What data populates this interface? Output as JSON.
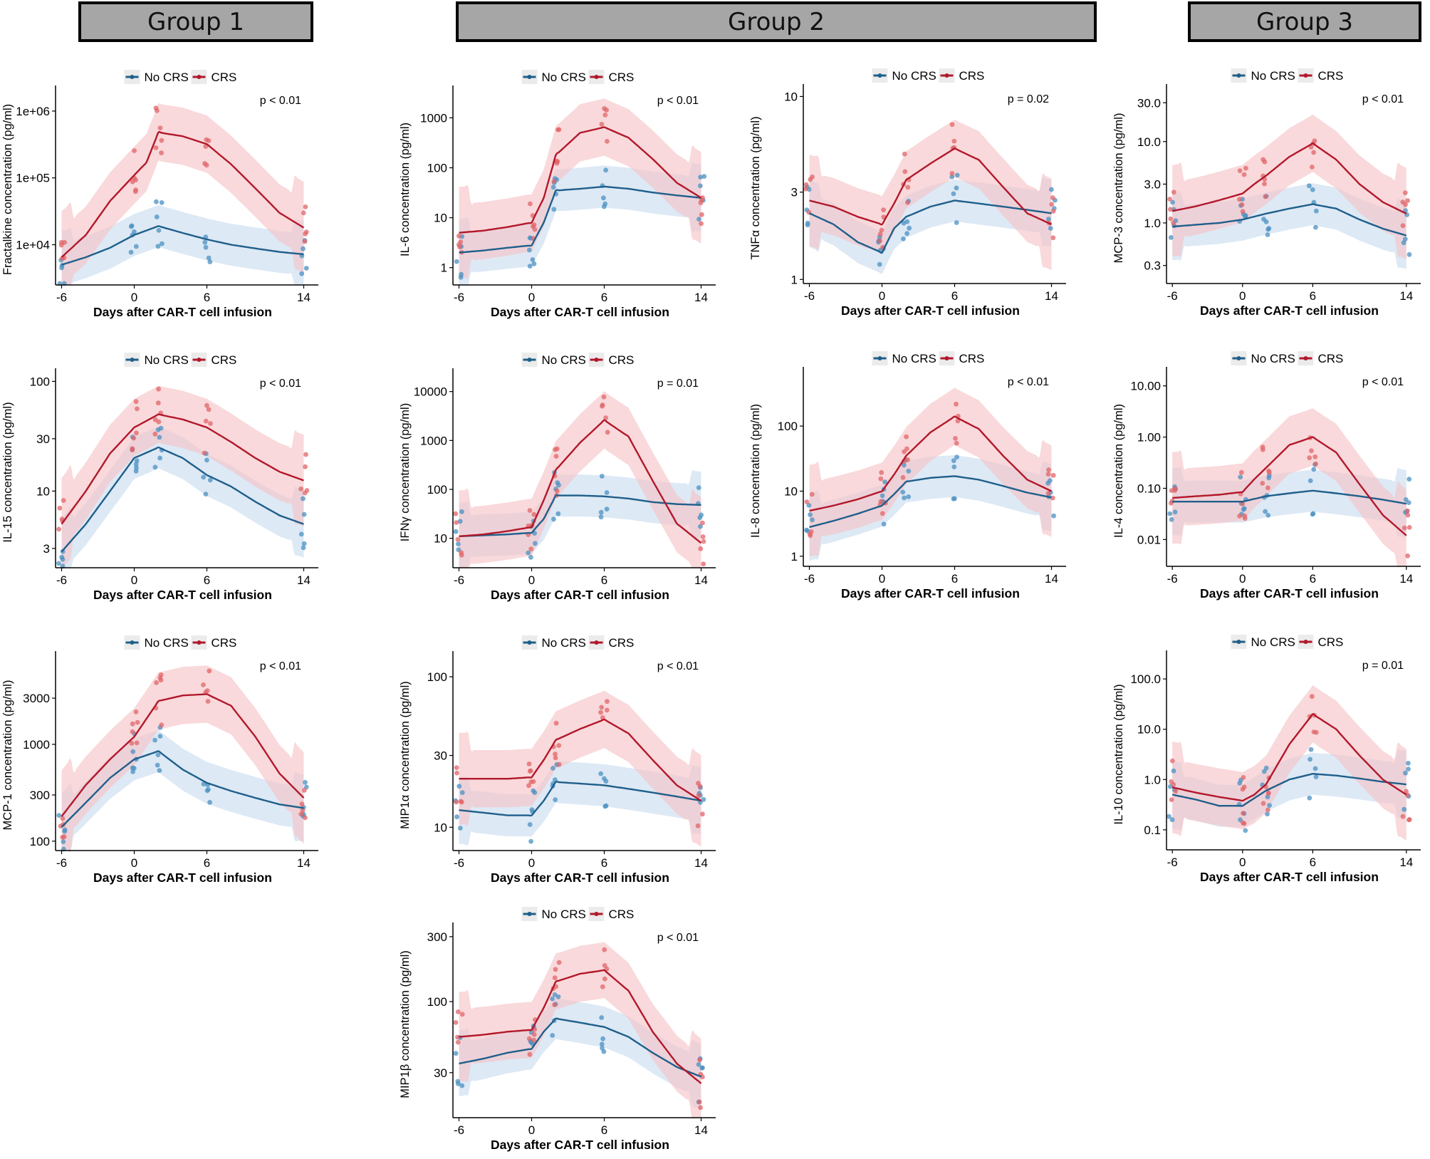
{
  "colors": {
    "no_crs": "#1f5f8b",
    "crs": "#b2182b",
    "no_crs_band": "#c6dbef",
    "crs_band": "#f6c5c8",
    "no_crs_point": "#4a90c2",
    "crs_point": "#e06468"
  },
  "groups": [
    {
      "label": "Group 1"
    },
    {
      "label": "Group 2"
    },
    {
      "label": "Group 3"
    }
  ],
  "legend": {
    "no_crs": "No CRS",
    "crs": "CRS"
  },
  "chart_data": [
    {
      "id": "fractalkine",
      "type": "line",
      "scale": "log",
      "ylabel": "Fractalkine concentration (pg/ml)",
      "xlabel": "Days after CAR-T cell infusion",
      "pvalue": "p < 0.01",
      "ylim": [
        2500,
        1800000
      ],
      "ticks": [
        10000,
        100000,
        1000000
      ],
      "tick_labels": [
        "1e+04",
        "1e+05",
        "1e+06"
      ],
      "xticks": [
        -6,
        0,
        6,
        14
      ],
      "xlim": [
        -6.5,
        14.5
      ],
      "series": [
        {
          "name": "No CRS",
          "x": [
            -6,
            -4,
            -2,
            0,
            2,
            4,
            6,
            8,
            10,
            12,
            14
          ],
          "y": [
            5000,
            6500,
            9000,
            14000,
            19000,
            15000,
            12000,
            10000,
            8800,
            7800,
            7200
          ]
        },
        {
          "name": "CRS",
          "x": [
            -6,
            -4,
            -2,
            0,
            1,
            2,
            4,
            6,
            8,
            10,
            12,
            14
          ],
          "y": [
            6500,
            14000,
            45000,
            110000,
            170000,
            480000,
            420000,
            320000,
            160000,
            70000,
            30000,
            18000
          ]
        }
      ]
    },
    {
      "id": "il15",
      "type": "line",
      "scale": "log",
      "ylabel": "IL-15 concentration (pg/ml)",
      "xlabel": "Days after CAR-T cell infusion",
      "pvalue": "p < 0.01",
      "ylim": [
        2,
        110
      ],
      "ticks": [
        3,
        10,
        30,
        100
      ],
      "tick_labels": [
        "3",
        "10",
        "30",
        "100"
      ],
      "xticks": [
        -6,
        0,
        6,
        14
      ],
      "xlim": [
        -6.5,
        14.5
      ],
      "series": [
        {
          "name": "No CRS",
          "x": [
            -6,
            -4,
            -2,
            0,
            2,
            4,
            6,
            8,
            10,
            12,
            14
          ],
          "y": [
            2.8,
            5,
            10,
            20,
            25,
            20,
            14,
            11,
            8,
            6,
            5
          ]
        },
        {
          "name": "CRS",
          "x": [
            -6,
            -4,
            -2,
            0,
            2,
            4,
            6,
            8,
            10,
            12,
            14
          ],
          "y": [
            5,
            10,
            22,
            38,
            50,
            45,
            38,
            28,
            20,
            15,
            12.5
          ]
        }
      ]
    },
    {
      "id": "mcp1",
      "type": "line",
      "scale": "log",
      "ylabel": "MCP-1 concentration (pg/ml)",
      "xlabel": "Days after CAR-T cell infusion",
      "pvalue": "p < 0.01",
      "ylim": [
        80,
        7500
      ],
      "ticks": [
        100,
        300,
        1000,
        3000
      ],
      "tick_labels": [
        "100",
        "300",
        "1000",
        "3000"
      ],
      "xticks": [
        -6,
        0,
        6,
        14
      ],
      "xlim": [
        -6.5,
        14.5
      ],
      "series": [
        {
          "name": "No CRS",
          "x": [
            -6,
            -4,
            -2,
            0,
            2,
            4,
            6,
            8,
            10,
            12,
            14
          ],
          "y": [
            140,
            250,
            450,
            700,
            850,
            550,
            400,
            330,
            280,
            240,
            220
          ]
        },
        {
          "name": "CRS",
          "x": [
            -6,
            -4,
            -2,
            0,
            2,
            4,
            6,
            8,
            10,
            12,
            14
          ],
          "y": [
            180,
            380,
            700,
            1200,
            2800,
            3200,
            3300,
            2500,
            1200,
            500,
            280
          ]
        }
      ]
    },
    {
      "id": "il6",
      "type": "line",
      "scale": "log",
      "ylabel": "IL-6 concentration (pg/ml)",
      "xlabel": "Days after CAR-T cell infusion",
      "pvalue": "p < 0.01",
      "ylim": [
        0.45,
        3000
      ],
      "ticks": [
        1,
        10,
        100,
        1000
      ],
      "tick_labels": [
        "1",
        "10",
        "100",
        "1000"
      ],
      "xticks": [
        -6,
        0,
        6,
        14
      ],
      "xlim": [
        -6.5,
        14.5
      ],
      "series": [
        {
          "name": "No CRS",
          "x": [
            -6,
            -4,
            -2,
            0,
            1,
            2,
            4,
            6,
            8,
            10,
            12,
            14
          ],
          "y": [
            2,
            2.2,
            2.5,
            2.8,
            8,
            35,
            38,
            42,
            38,
            32,
            28,
            25
          ]
        },
        {
          "name": "CRS",
          "x": [
            -6,
            -4,
            -2,
            0,
            1,
            2,
            4,
            6,
            8,
            10,
            12,
            14
          ],
          "y": [
            5,
            5.5,
            6.5,
            8,
            25,
            180,
            500,
            650,
            400,
            150,
            50,
            25
          ]
        }
      ]
    },
    {
      "id": "ifng",
      "type": "line",
      "scale": "log",
      "ylabel": "IFNγ concentration (pg/ml)",
      "xlabel": "Days after CAR-T cell infusion",
      "pvalue": "p = 0.01",
      "ylim": [
        2.5,
        20000
      ],
      "ticks": [
        10,
        100,
        1000,
        10000
      ],
      "tick_labels": [
        "10",
        "100",
        "1000",
        "10000"
      ],
      "xticks": [
        -6,
        0,
        6,
        14
      ],
      "xlim": [
        -6.5,
        14.5
      ],
      "series": [
        {
          "name": "No CRS",
          "x": [
            -6,
            -4,
            -2,
            0,
            1,
            2,
            4,
            6,
            8,
            10,
            12,
            14
          ],
          "y": [
            11,
            11.5,
            12,
            13,
            25,
            75,
            75,
            72,
            65,
            55,
            50,
            48
          ]
        },
        {
          "name": "CRS",
          "x": [
            -6,
            -4,
            -2,
            0,
            1,
            2,
            4,
            6,
            8,
            10,
            12,
            14
          ],
          "y": [
            11,
            12,
            14,
            17,
            60,
            250,
            900,
            2600,
            1200,
            150,
            20,
            8
          ]
        }
      ]
    },
    {
      "id": "mip1a",
      "type": "line",
      "scale": "log",
      "ylabel": "MIP1α concentration (pg/ml)",
      "xlabel": "Days after CAR-T cell infusion",
      "pvalue": "p < 0.01",
      "ylim": [
        7,
        130
      ],
      "ticks": [
        10,
        30,
        100
      ],
      "tick_labels": [
        "10",
        "30",
        "100"
      ],
      "xticks": [
        -6,
        0,
        6,
        14
      ],
      "xlim": [
        -6.5,
        14.5
      ],
      "series": [
        {
          "name": "No CRS",
          "x": [
            -6,
            -4,
            -2,
            0,
            1,
            2,
            4,
            6,
            8,
            10,
            12,
            14
          ],
          "y": [
            13,
            12.5,
            12,
            12,
            15,
            20,
            19.5,
            19,
            18,
            17,
            16,
            15
          ]
        },
        {
          "name": "CRS",
          "x": [
            -6,
            -4,
            -2,
            0,
            1,
            2,
            4,
            6,
            8,
            10,
            12,
            14
          ],
          "y": [
            21,
            21,
            21,
            21.5,
            28,
            38,
            45,
            52,
            42,
            28,
            19,
            15
          ]
        }
      ]
    },
    {
      "id": "mip1b",
      "type": "line",
      "scale": "log",
      "ylabel": "MIP1β concentration (pg/ml)",
      "xlabel": "Days after CAR-T cell infusion",
      "pvalue": "p < 0.01",
      "ylim": [
        14,
        330
      ],
      "ticks": [
        30,
        100,
        300
      ],
      "tick_labels": [
        "30",
        "100",
        "300"
      ],
      "xticks": [
        -6,
        0,
        6,
        14
      ],
      "xlim": [
        -6.5,
        14.5
      ],
      "series": [
        {
          "name": "No CRS",
          "x": [
            -6,
            -4,
            -2,
            0,
            1,
            2,
            4,
            6,
            8,
            10,
            12,
            14
          ],
          "y": [
            35,
            38,
            42,
            45,
            60,
            75,
            70,
            65,
            55,
            42,
            33,
            28
          ]
        },
        {
          "name": "CRS",
          "x": [
            -6,
            -4,
            -2,
            0,
            1,
            2,
            4,
            6,
            8,
            10,
            12,
            14
          ],
          "y": [
            55,
            57,
            60,
            62,
            90,
            140,
            160,
            170,
            120,
            60,
            35,
            25
          ]
        }
      ]
    },
    {
      "id": "tnfa",
      "type": "line",
      "scale": "log",
      "ylabel": "TNFα concentration (pg/ml)",
      "xlabel": "Days after CAR-T cell infusion",
      "pvalue": "p = 0.02",
      "ylim": [
        0.95,
        10.5
      ],
      "ticks": [
        1,
        3,
        10
      ],
      "tick_labels": [
        "1",
        "3",
        "10"
      ],
      "xticks": [
        -6,
        0,
        6,
        14
      ],
      "xlim": [
        -6.5,
        14.5
      ],
      "series": [
        {
          "name": "No CRS",
          "x": [
            -6,
            -4,
            -2,
            0,
            1,
            2,
            4,
            6,
            8,
            10,
            12,
            14
          ],
          "y": [
            2.3,
            2,
            1.6,
            1.4,
            1.9,
            2.2,
            2.5,
            2.7,
            2.6,
            2.5,
            2.4,
            2.3
          ]
        },
        {
          "name": "CRS",
          "x": [
            -6,
            -4,
            -2,
            0,
            1,
            2,
            4,
            6,
            8,
            10,
            12,
            14
          ],
          "y": [
            2.7,
            2.5,
            2.2,
            2,
            2.6,
            3.5,
            4.3,
            5.2,
            4.5,
            3.2,
            2.3,
            2
          ]
        }
      ]
    },
    {
      "id": "il8",
      "type": "line",
      "scale": "log",
      "ylabel": "IL-8 concentration (pg/ml)",
      "xlabel": "Days after CAR-T cell infusion",
      "pvalue": "p < 0.01",
      "ylim": [
        0.7,
        600
      ],
      "ticks": [
        1,
        10,
        100
      ],
      "tick_labels": [
        "1",
        "10",
        "100"
      ],
      "xticks": [
        -6,
        0,
        6,
        14
      ],
      "xlim": [
        -6.5,
        14.5
      ],
      "series": [
        {
          "name": "No CRS",
          "x": [
            -6,
            -4,
            -2,
            0,
            1,
            2,
            4,
            6,
            8,
            10,
            12,
            14
          ],
          "y": [
            2.8,
            3.5,
            4.5,
            6,
            9,
            14,
            16,
            17,
            15,
            12,
            9.5,
            8
          ]
        },
        {
          "name": "CRS",
          "x": [
            -6,
            -4,
            -2,
            0,
            1,
            2,
            4,
            6,
            8,
            10,
            12,
            14
          ],
          "y": [
            5,
            6,
            7.5,
            10,
            18,
            35,
            80,
            140,
            90,
            35,
            15,
            10
          ]
        }
      ]
    },
    {
      "id": "mcp3",
      "type": "line",
      "scale": "log",
      "ylabel": "MCP-3 concentration (pg/ml)",
      "xlabel": "Days after CAR-T cell infusion",
      "pvalue": "p < 0.01",
      "ylim": [
        0.18,
        40
      ],
      "ticks": [
        0.3,
        1,
        3,
        10,
        30
      ],
      "tick_labels": [
        "0.3",
        "1.0",
        "3.0",
        "10.0",
        "30.0"
      ],
      "xticks": [
        -6,
        0,
        6,
        14
      ],
      "xlim": [
        -6.5,
        14.5
      ],
      "series": [
        {
          "name": "No CRS",
          "x": [
            -6,
            -4,
            -2,
            0,
            2,
            4,
            6,
            8,
            10,
            12,
            14
          ],
          "y": [
            0.9,
            0.95,
            1,
            1.1,
            1.3,
            1.5,
            1.7,
            1.5,
            1.1,
            0.85,
            0.7
          ]
        },
        {
          "name": "CRS",
          "x": [
            -6,
            -4,
            -2,
            0,
            1,
            2,
            4,
            6,
            8,
            10,
            12,
            14
          ],
          "y": [
            1.4,
            1.6,
            1.9,
            2.3,
            3,
            3.8,
            6.5,
            9.5,
            6,
            3,
            1.8,
            1.3
          ]
        }
      ]
    },
    {
      "id": "il4",
      "type": "line",
      "scale": "log",
      "ylabel": "IL-4 concentration (pg/ml)",
      "xlabel": "Days after CAR-T cell infusion",
      "pvalue": "p < 0.01",
      "ylim": [
        0.003,
        16
      ],
      "ticks": [
        0.01,
        0.1,
        1,
        10
      ],
      "tick_labels": [
        "0.01",
        "0.10",
        "1.00",
        "10.00"
      ],
      "xticks": [
        -6,
        0,
        6,
        14
      ],
      "xlim": [
        -6.5,
        14.5
      ],
      "series": [
        {
          "name": "No CRS",
          "x": [
            -6,
            -4,
            -2,
            0,
            2,
            4,
            6,
            8,
            10,
            12,
            14
          ],
          "y": [
            0.055,
            0.055,
            0.055,
            0.055,
            0.07,
            0.08,
            0.09,
            0.08,
            0.07,
            0.06,
            0.05
          ]
        },
        {
          "name": "CRS",
          "x": [
            -6,
            -4,
            -2,
            0,
            1,
            2,
            4,
            6,
            8,
            10,
            12,
            14
          ],
          "y": [
            0.065,
            0.07,
            0.075,
            0.085,
            0.15,
            0.25,
            0.7,
            1,
            0.5,
            0.12,
            0.03,
            0.012
          ]
        }
      ]
    },
    {
      "id": "il10",
      "type": "line",
      "scale": "log",
      "ylabel": "IL-10 concentration (pg/ml)",
      "xlabel": "Days after CAR-T cell infusion",
      "pvalue": "p = 0.01",
      "ylim": [
        0.04,
        250
      ],
      "ticks": [
        0.1,
        1,
        10,
        100
      ],
      "tick_labels": [
        "0.1",
        "1.0",
        "10.0",
        "100.0"
      ],
      "xticks": [
        -6,
        0,
        6,
        14
      ],
      "xlim": [
        -6.5,
        14.5
      ],
      "series": [
        {
          "name": "No CRS",
          "x": [
            -6,
            -4,
            -2,
            0,
            2,
            4,
            6,
            8,
            10,
            12,
            14
          ],
          "y": [
            0.5,
            0.4,
            0.3,
            0.3,
            0.6,
            1,
            1.3,
            1.2,
            1.05,
            0.9,
            0.8
          ]
        },
        {
          "name": "CRS",
          "x": [
            -6,
            -4,
            -2,
            0,
            1,
            2,
            4,
            6,
            8,
            10,
            12,
            14
          ],
          "y": [
            0.7,
            0.55,
            0.45,
            0.38,
            0.5,
            0.8,
            5,
            20,
            10,
            3,
            1,
            0.5
          ]
        }
      ]
    }
  ]
}
